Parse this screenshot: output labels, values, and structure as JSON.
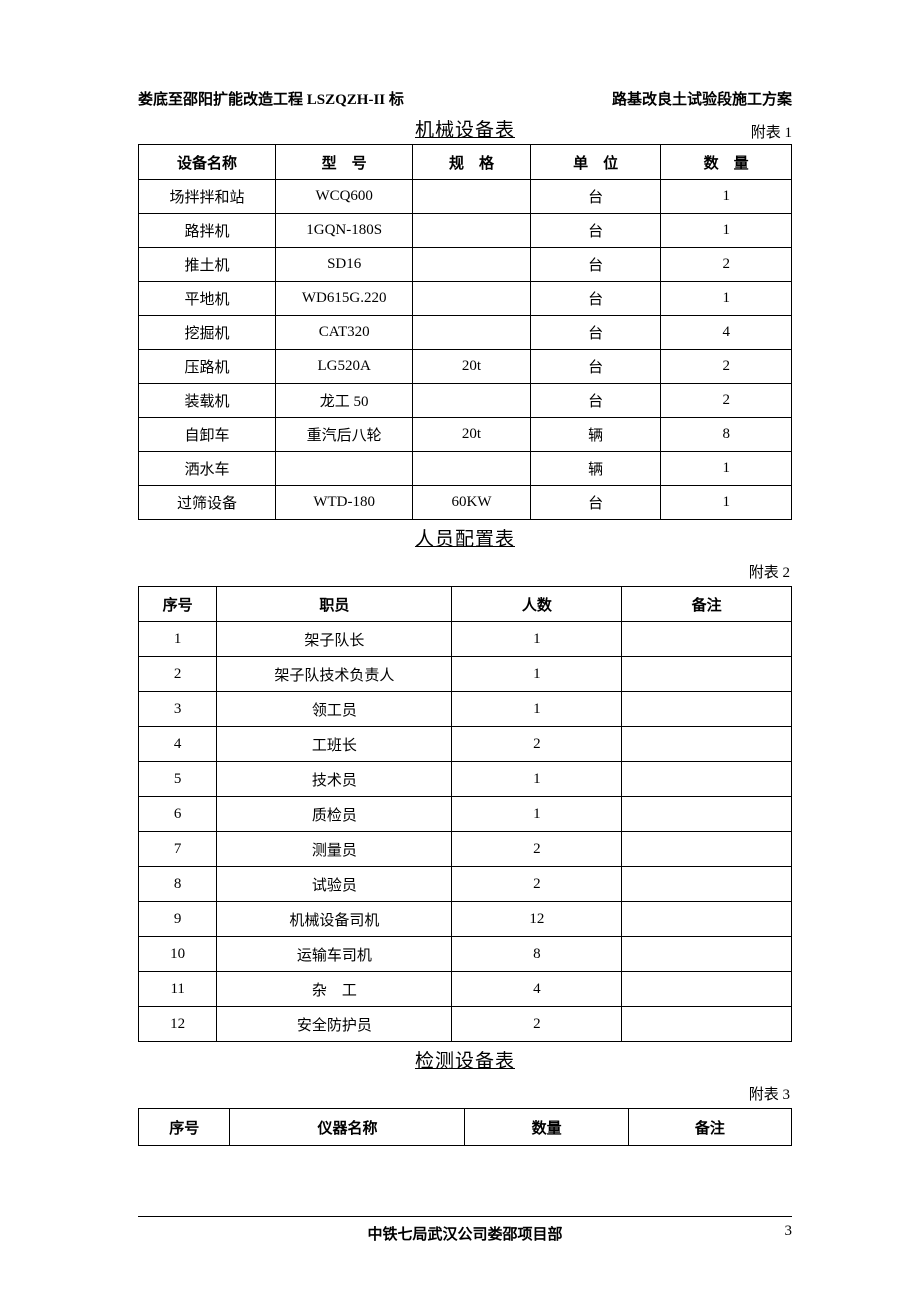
{
  "header": {
    "left": "娄底至邵阳扩能改造工程 LSZQZH-II 标",
    "right": "路基改良土试验段施工方案"
  },
  "table1": {
    "title": "机械设备表",
    "attach": "附表 1",
    "columns": [
      "设备名称",
      "型　号",
      "规　格",
      "单　位",
      "数　量"
    ],
    "rows": [
      [
        "场拌拌和站",
        "WCQ600",
        "",
        "台",
        "1"
      ],
      [
        "路拌机",
        "1GQN-180S",
        "",
        "台",
        "1"
      ],
      [
        "推土机",
        "SD16",
        "",
        "台",
        "2"
      ],
      [
        "平地机",
        "WD615G.220",
        "",
        "台",
        "1"
      ],
      [
        "挖掘机",
        "CAT320",
        "",
        "台",
        "4"
      ],
      [
        "压路机",
        "LG520A",
        "20t",
        "台",
        "2"
      ],
      [
        "装载机",
        "龙工 50",
        "",
        "台",
        "2"
      ],
      [
        "自卸车",
        "重汽后八轮",
        "20t",
        "辆",
        "8"
      ],
      [
        "洒水车",
        "",
        "",
        "辆",
        "1"
      ],
      [
        "过筛设备",
        "WTD-180",
        "60KW",
        "台",
        "1"
      ]
    ]
  },
  "table2": {
    "title": "人员配置表",
    "attach": "附表 2",
    "columns": [
      "序号",
      "职员",
      "人数",
      "备注"
    ],
    "rows": [
      [
        "1",
        "架子队长",
        "1",
        ""
      ],
      [
        "2",
        "架子队技术负责人",
        "1",
        ""
      ],
      [
        "3",
        "领工员",
        "1",
        ""
      ],
      [
        "4",
        "工班长",
        "2",
        ""
      ],
      [
        "5",
        "技术员",
        "1",
        ""
      ],
      [
        "6",
        "质检员",
        "1",
        ""
      ],
      [
        "7",
        "测量员",
        "2",
        ""
      ],
      [
        "8",
        "试验员",
        "2",
        ""
      ],
      [
        "9",
        "机械设备司机",
        "12",
        ""
      ],
      [
        "10",
        "运输车司机",
        "8",
        ""
      ],
      [
        "11",
        "杂　工",
        "4",
        ""
      ],
      [
        "12",
        "安全防护员",
        "2",
        ""
      ]
    ]
  },
  "table3": {
    "title": "检测设备表",
    "attach": "附表 3",
    "columns": [
      "序号",
      "仪器名称",
      "数量",
      "备注"
    ]
  },
  "footer": {
    "center": "中铁七局武汉公司娄邵项目部",
    "page": "3"
  }
}
